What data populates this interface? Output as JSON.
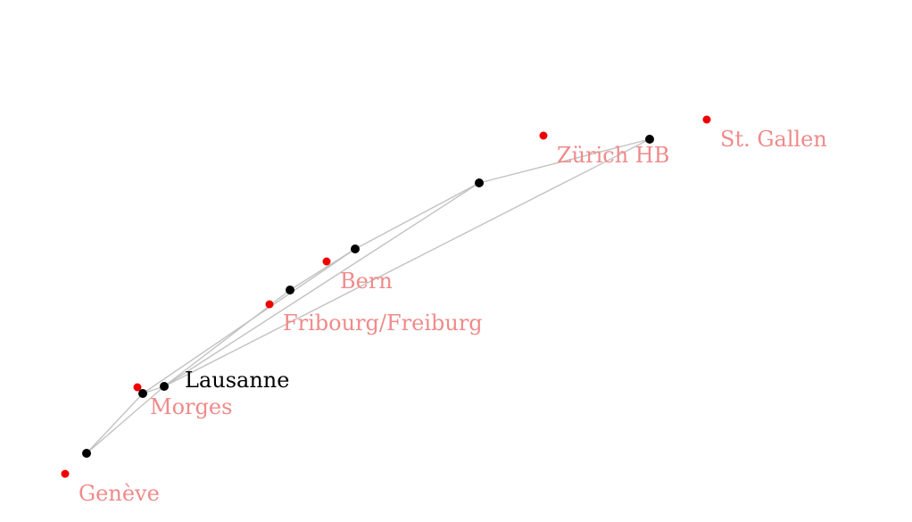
{
  "map": {
    "stations": {
      "geneve": "Genève",
      "morges": "Morges",
      "lausanne": "Lausanne",
      "fribourg": "Fribourg/Freiburg",
      "bern": "Bern",
      "zurich": "Zürich HB",
      "stgallen": "St. Gallen"
    },
    "colors": {
      "station_dot": "#ee0000",
      "station_label": "#f08a8a",
      "node_dot": "#000000",
      "node_label": "#000000",
      "edge": "#c2c2c2"
    }
  }
}
